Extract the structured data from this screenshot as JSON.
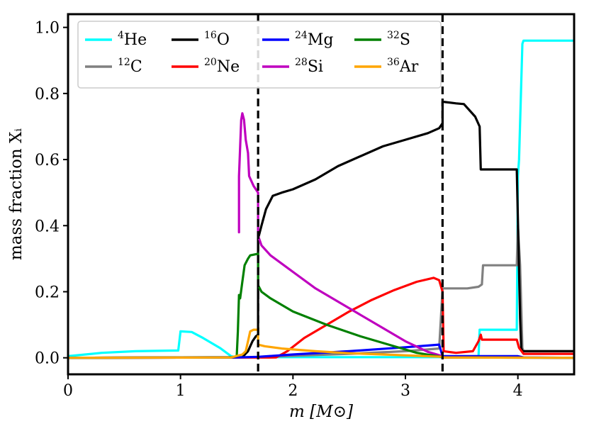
{
  "chart_data": {
    "type": "line",
    "xlabel": "m [M⊙]",
    "ylabel": "mass fraction Xᵢ",
    "xlim": [
      0,
      4.5
    ],
    "ylim": [
      -0.05,
      1.04
    ],
    "xticks": [
      0,
      1,
      2,
      3,
      4
    ],
    "yticks": [
      0.0,
      0.2,
      0.4,
      0.6,
      0.8,
      1.0
    ],
    "xtick_labels": [
      "0",
      "1",
      "2",
      "3",
      "4"
    ],
    "ytick_labels": [
      "0.0",
      "0.2",
      "0.4",
      "0.6",
      "0.8",
      "1.0"
    ],
    "vlines": [
      1.69,
      3.33
    ],
    "legend_position": "top-left",
    "series": [
      {
        "id": "He4",
        "mass": "4",
        "elem": "He",
        "color": "#00ffff",
        "points": [
          [
            0,
            0.005
          ],
          [
            0.3,
            0.015
          ],
          [
            0.6,
            0.02
          ],
          [
            0.98,
            0.022
          ],
          [
            1.0,
            0.08
          ],
          [
            1.1,
            0.078
          ],
          [
            1.2,
            0.06
          ],
          [
            1.35,
            0.03
          ],
          [
            1.45,
            0.005
          ],
          [
            1.5,
            0.002
          ],
          [
            3.65,
            0.002
          ],
          [
            3.66,
            0.085
          ],
          [
            3.99,
            0.085
          ],
          [
            4.0,
            0.55
          ],
          [
            4.01,
            0.6
          ],
          [
            4.04,
            0.95
          ],
          [
            4.05,
            0.96
          ],
          [
            4.5,
            0.96
          ]
        ]
      },
      {
        "id": "C12",
        "mass": "12",
        "elem": "C",
        "color": "#808080",
        "points": [
          [
            0,
            0
          ],
          [
            1.5,
            0.001
          ],
          [
            1.69,
            0.002
          ],
          [
            2.0,
            0.006
          ],
          [
            2.5,
            0.012
          ],
          [
            3.0,
            0.02
          ],
          [
            3.3,
            0.028
          ],
          [
            3.33,
            0.21
          ],
          [
            3.45,
            0.21
          ],
          [
            3.55,
            0.21
          ],
          [
            3.65,
            0.215
          ],
          [
            3.68,
            0.222
          ],
          [
            3.69,
            0.28
          ],
          [
            3.99,
            0.28
          ],
          [
            4.0,
            0.4
          ],
          [
            4.02,
            0.28
          ],
          [
            4.04,
            0.03
          ],
          [
            4.05,
            0.02
          ],
          [
            4.5,
            0.02
          ]
        ]
      },
      {
        "id": "O16",
        "mass": "16",
        "elem": "O",
        "color": "#000000",
        "points": [
          [
            0,
            0
          ],
          [
            1.55,
            0.002
          ],
          [
            1.6,
            0.02
          ],
          [
            1.64,
            0.05
          ],
          [
            1.67,
            0.065
          ],
          [
            1.69,
            0.07
          ],
          [
            1.69,
            0.36
          ],
          [
            1.72,
            0.4
          ],
          [
            1.76,
            0.45
          ],
          [
            1.82,
            0.49
          ],
          [
            1.9,
            0.5
          ],
          [
            2.0,
            0.51
          ],
          [
            2.2,
            0.54
          ],
          [
            2.4,
            0.58
          ],
          [
            2.6,
            0.61
          ],
          [
            2.8,
            0.64
          ],
          [
            3.0,
            0.66
          ],
          [
            3.2,
            0.68
          ],
          [
            3.3,
            0.695
          ],
          [
            3.33,
            0.71
          ],
          [
            3.33,
            0.775
          ],
          [
            3.45,
            0.77
          ],
          [
            3.52,
            0.768
          ],
          [
            3.62,
            0.73
          ],
          [
            3.66,
            0.7
          ],
          [
            3.67,
            0.57
          ],
          [
            3.99,
            0.57
          ],
          [
            4.02,
            0.12
          ],
          [
            4.03,
            0.03
          ],
          [
            4.04,
            0.02
          ],
          [
            4.5,
            0.02
          ]
        ]
      },
      {
        "id": "Ne20",
        "mass": "20",
        "elem": "Ne",
        "color": "#ff0000",
        "points": [
          [
            0,
            0
          ],
          [
            1.85,
            0.001
          ],
          [
            1.95,
            0.02
          ],
          [
            2.1,
            0.06
          ],
          [
            2.3,
            0.1
          ],
          [
            2.5,
            0.14
          ],
          [
            2.7,
            0.175
          ],
          [
            2.9,
            0.205
          ],
          [
            3.1,
            0.23
          ],
          [
            3.25,
            0.242
          ],
          [
            3.3,
            0.235
          ],
          [
            3.33,
            0.2
          ],
          [
            3.34,
            0.02
          ],
          [
            3.45,
            0.015
          ],
          [
            3.6,
            0.02
          ],
          [
            3.65,
            0.05
          ],
          [
            3.67,
            0.07
          ],
          [
            3.68,
            0.055
          ],
          [
            3.99,
            0.055
          ],
          [
            4.01,
            0.03
          ],
          [
            4.05,
            0.012
          ],
          [
            4.5,
            0.012
          ]
        ]
      },
      {
        "id": "Mg24",
        "mass": "24",
        "elem": "Mg",
        "color": "#0000ff",
        "points": [
          [
            0,
            0
          ],
          [
            1.5,
            0.001
          ],
          [
            1.69,
            0.003
          ],
          [
            2.0,
            0.01
          ],
          [
            2.5,
            0.02
          ],
          [
            3.0,
            0.032
          ],
          [
            3.3,
            0.04
          ],
          [
            3.33,
            0.005
          ],
          [
            4.0,
            0.005
          ],
          [
            4.05,
            0.001
          ],
          [
            4.5,
            0
          ]
        ]
      },
      {
        "id": "Si28",
        "mass": "28",
        "elem": "Si",
        "color": "#bf00bf",
        "points": [
          [
            1.52,
            0.38
          ],
          [
            1.52,
            0.55
          ],
          [
            1.54,
            0.72
          ],
          [
            1.55,
            0.74
          ],
          [
            1.565,
            0.72
          ],
          [
            1.58,
            0.66
          ],
          [
            1.6,
            0.62
          ],
          [
            1.61,
            0.55
          ],
          [
            1.65,
            0.52
          ],
          [
            1.69,
            0.5
          ],
          [
            1.69,
            0.37
          ],
          [
            1.72,
            0.34
          ],
          [
            1.8,
            0.31
          ],
          [
            2.0,
            0.26
          ],
          [
            2.2,
            0.21
          ],
          [
            2.5,
            0.15
          ],
          [
            2.8,
            0.09
          ],
          [
            3.0,
            0.05
          ],
          [
            3.2,
            0.018
          ],
          [
            3.33,
            0.005
          ],
          [
            3.34,
            0.001
          ],
          [
            4.5,
            0
          ]
        ]
      },
      {
        "id": "S32",
        "mass": "32",
        "elem": "S",
        "color": "#008000",
        "points": [
          [
            0,
            0
          ],
          [
            1.45,
            0.001
          ],
          [
            1.5,
            0.005
          ],
          [
            1.51,
            0.08
          ],
          [
            1.52,
            0.19
          ],
          [
            1.53,
            0.18
          ],
          [
            1.55,
            0.23
          ],
          [
            1.57,
            0.28
          ],
          [
            1.6,
            0.3
          ],
          [
            1.62,
            0.31
          ],
          [
            1.69,
            0.315
          ],
          [
            1.69,
            0.22
          ],
          [
            1.72,
            0.2
          ],
          [
            1.8,
            0.18
          ],
          [
            2.0,
            0.14
          ],
          [
            2.3,
            0.1
          ],
          [
            2.6,
            0.065
          ],
          [
            2.9,
            0.035
          ],
          [
            3.1,
            0.015
          ],
          [
            3.3,
            0.004
          ],
          [
            3.33,
            0.001
          ],
          [
            4.5,
            0
          ]
        ]
      },
      {
        "id": "Ar36",
        "mass": "36",
        "elem": "Ar",
        "color": "#ffa500",
        "points": [
          [
            0,
            0
          ],
          [
            1.45,
            0.001
          ],
          [
            1.55,
            0.01
          ],
          [
            1.58,
            0.02
          ],
          [
            1.6,
            0.05
          ],
          [
            1.62,
            0.08
          ],
          [
            1.65,
            0.085
          ],
          [
            1.69,
            0.085
          ],
          [
            1.69,
            0.04
          ],
          [
            1.75,
            0.035
          ],
          [
            1.9,
            0.028
          ],
          [
            2.2,
            0.02
          ],
          [
            2.5,
            0.014
          ],
          [
            2.8,
            0.01
          ],
          [
            3.1,
            0.006
          ],
          [
            3.33,
            0.003
          ],
          [
            3.34,
            0.001
          ],
          [
            4.5,
            0
          ]
        ]
      }
    ]
  }
}
